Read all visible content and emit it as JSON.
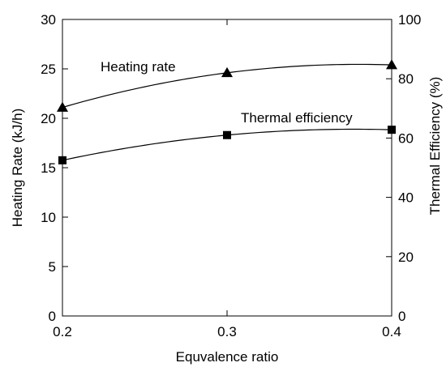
{
  "chart_data": {
    "type": "line",
    "title": "",
    "xlabel": "Equvalence ratio",
    "ylabel_left": "Heating Rate (kJ/h)",
    "ylabel_right": "Thermal Efficiency (%)",
    "x_ticks": [
      "0.2",
      "0.3",
      "0.4"
    ],
    "y_left_ticks": [
      "0",
      "5",
      "10",
      "15",
      "20",
      "25",
      "30"
    ],
    "y_right_ticks": [
      "0",
      "20",
      "40",
      "60",
      "80",
      "100"
    ],
    "xlim": [
      0.2,
      0.4
    ],
    "ylim_left": [
      0,
      30
    ],
    "ylim_right": [
      0,
      100
    ],
    "grid": false,
    "legend": "none",
    "series": [
      {
        "name": "Heating rate",
        "axis": "left",
        "marker": "triangle",
        "color": "#000000",
        "x": [
          0.2,
          0.3,
          0.4
        ],
        "y": [
          21.1,
          24.6,
          25.4
        ]
      },
      {
        "name": "Thermal efficiency",
        "axis": "right",
        "marker": "square",
        "color": "#000000",
        "x": [
          0.2,
          0.3,
          0.4
        ],
        "y": [
          52.5,
          61.0,
          62.8
        ]
      }
    ]
  }
}
